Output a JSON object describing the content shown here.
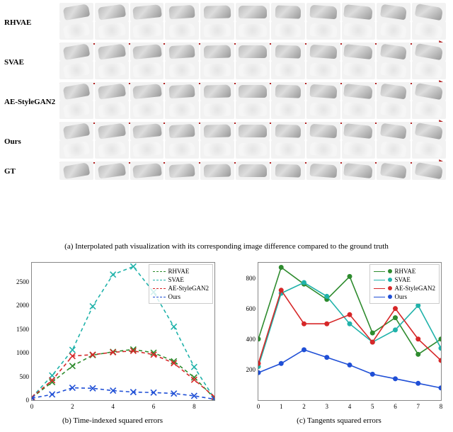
{
  "captions": {
    "a": "(a) Interpolated path visualization with its corresponding image difference compared to the ground truth",
    "b": "(b) Time-indexed squared errors",
    "c": "(c) Tangents squared errors"
  },
  "methods": [
    "RHVAE",
    "SVAE",
    "AE-StyleGAN2",
    "Ours",
    "GT"
  ],
  "arrow_color": "#b22222",
  "num_thumbs": 11,
  "series": {
    "RHVAE": {
      "color": "#2e8b2e",
      "marker": "x",
      "dash": true
    },
    "SVAE": {
      "color": "#20b2aa",
      "marker": "x",
      "dash": true
    },
    "AE-StyleGAN2": {
      "color": "#d62728",
      "marker": "x",
      "dash": true
    },
    "Ours": {
      "color": "#1f4fd6",
      "marker": "x",
      "dash": true
    }
  },
  "series_c": {
    "RHVAE": {
      "color": "#2e8b2e",
      "marker": "o"
    },
    "SVAE": {
      "color": "#20b2aa",
      "marker": "o"
    },
    "AE-StyleGAN2": {
      "color": "#d62728",
      "marker": "o"
    },
    "Ours": {
      "color": "#1f4fd6",
      "marker": "o"
    }
  },
  "chart_b": {
    "xlim": [
      0,
      9
    ],
    "ylim": [
      0,
      2900
    ],
    "xticks": [
      0,
      2,
      4,
      6,
      8
    ],
    "yticks": [
      0,
      500,
      1000,
      1500,
      2000,
      2500
    ],
    "data": {
      "RHVAE": [
        50,
        380,
        720,
        950,
        1020,
        1070,
        1000,
        820,
        480,
        40
      ],
      "SVAE": [
        60,
        520,
        1060,
        1980,
        2650,
        2820,
        2280,
        1550,
        700,
        30
      ],
      "AE-StyleGAN2": [
        60,
        420,
        930,
        960,
        1010,
        1040,
        960,
        780,
        430,
        70
      ],
      "Ours": [
        40,
        120,
        260,
        250,
        200,
        170,
        160,
        140,
        90,
        20
      ]
    }
  },
  "chart_c": {
    "xlim": [
      0,
      8
    ],
    "ylim": [
      0,
      900
    ],
    "xticks": [
      0,
      1,
      2,
      3,
      4,
      5,
      6,
      7,
      8
    ],
    "yticks": [
      200,
      400,
      600,
      800
    ],
    "data": {
      "RHVAE": [
        400,
        870,
        760,
        660,
        810,
        440,
        540,
        300,
        400
      ],
      "SVAE": [
        220,
        700,
        770,
        680,
        500,
        380,
        460,
        620,
        340
      ],
      "AE-StyleGAN2": [
        240,
        720,
        500,
        500,
        560,
        380,
        600,
        400,
        260
      ],
      "Ours": [
        180,
        240,
        330,
        280,
        230,
        170,
        140,
        110,
        80
      ]
    }
  },
  "legend_order": [
    "RHVAE",
    "SVAE",
    "AE-StyleGAN2",
    "Ours"
  ]
}
